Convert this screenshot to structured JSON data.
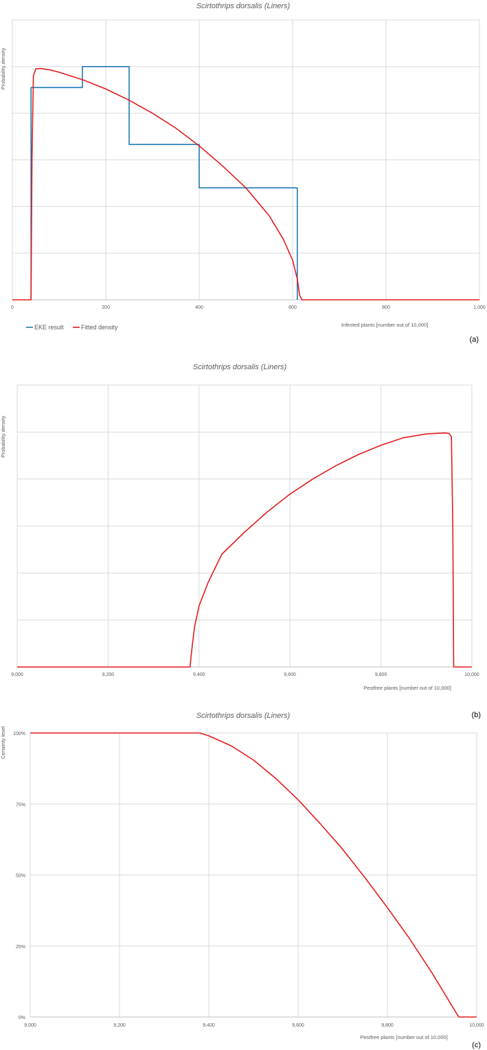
{
  "colors": {
    "eke": "#1f77b4",
    "fitted": "#e31a1c",
    "grid": "#d9d9d9",
    "axis": "#bfbfbf",
    "text": "#595959"
  },
  "chart_data": [
    {
      "type": "line",
      "panel_label": "(a)",
      "title": "Scirtothrips dorsalis (Liners)",
      "xlabel": "Infested plants [number out of 10,000]",
      "ylabel": "Probability density",
      "xlim": [
        0,
        1000
      ],
      "ylim": [
        0,
        6
      ],
      "x_ticks": [
        0,
        200,
        400,
        600,
        800,
        1000
      ],
      "x_tick_labels": [
        "0",
        "200",
        "400",
        "600",
        "800",
        "1,000"
      ],
      "grid": true,
      "legend_position": "bottom-left",
      "legend": [
        "EKE result",
        "Fitted density"
      ],
      "series": [
        {
          "name": "EKE result",
          "style": "step",
          "x": [
            40,
            40,
            150,
            150,
            250,
            250,
            400,
            400,
            610,
            610
          ],
          "y": [
            0,
            4.55,
            4.55,
            5.0,
            5.0,
            3.33,
            3.33,
            2.4,
            2.4,
            0
          ]
        },
        {
          "name": "Fitted density",
          "style": "line",
          "x": [
            0,
            40,
            42,
            45,
            50,
            60,
            80,
            100,
            150,
            200,
            250,
            300,
            350,
            400,
            450,
            500,
            550,
            580,
            600,
            610,
            615,
            620,
            1000
          ],
          "y": [
            0,
            0,
            3.0,
            4.8,
            4.95,
            4.96,
            4.93,
            4.88,
            4.72,
            4.52,
            4.28,
            4.0,
            3.68,
            3.3,
            2.87,
            2.4,
            1.8,
            1.3,
            0.85,
            0.45,
            0.1,
            0,
            0
          ]
        }
      ]
    },
    {
      "type": "line",
      "panel_label": "(b)",
      "title": "Scirtothrips dorsalis (Liners)",
      "xlabel": "Pestfree plants [number out of 10,000]",
      "ylabel": "Probability density",
      "xlim": [
        9000,
        10000
      ],
      "ylim": [
        0,
        6
      ],
      "x_ticks": [
        9000,
        9200,
        9400,
        9600,
        9800,
        10000
      ],
      "x_tick_labels": [
        "9,000",
        "9,200",
        "9,400",
        "9,600",
        "9,800",
        "10,000"
      ],
      "grid": true,
      "series": [
        {
          "name": "Fitted density",
          "style": "line",
          "x": [
            9000,
            9380,
            9385,
            9390,
            9400,
            9420,
            9450,
            9500,
            9550,
            9600,
            9650,
            9700,
            9750,
            9800,
            9850,
            9900,
            9940,
            9950,
            9955,
            9958,
            9960,
            10000
          ],
          "y": [
            0,
            0,
            0.45,
            0.85,
            1.3,
            1.8,
            2.4,
            2.87,
            3.3,
            3.68,
            4.0,
            4.28,
            4.52,
            4.72,
            4.88,
            4.96,
            4.98,
            4.97,
            4.9,
            3.0,
            0,
            0
          ]
        }
      ]
    },
    {
      "type": "line",
      "panel_label": "(c)",
      "title": "Scirtothrips dorsalis (Liners)",
      "xlabel": "Pestfree plants [number out of 10,000]",
      "ylabel": "Certainty level",
      "xlim": [
        9000,
        10000
      ],
      "ylim": [
        0,
        1
      ],
      "x_ticks": [
        9000,
        9200,
        9400,
        9600,
        9800,
        10000
      ],
      "x_tick_labels": [
        "9,000",
        "9,200",
        "9,400",
        "9,600",
        "9,800",
        "10,000"
      ],
      "y_ticks": [
        0,
        0.25,
        0.5,
        0.75,
        1.0
      ],
      "y_tick_labels": [
        "0%",
        "25%",
        "50%",
        "75%",
        "100%"
      ],
      "grid": true,
      "series": [
        {
          "name": "Fitted density",
          "style": "line",
          "x": [
            9000,
            9380,
            9400,
            9450,
            9500,
            9550,
            9600,
            9650,
            9700,
            9750,
            9800,
            9850,
            9900,
            9950,
            9960,
            10000
          ],
          "y": [
            1.0,
            1.0,
            0.99,
            0.955,
            0.905,
            0.84,
            0.765,
            0.68,
            0.59,
            0.49,
            0.385,
            0.275,
            0.155,
            0.025,
            0,
            0
          ]
        }
      ]
    }
  ]
}
